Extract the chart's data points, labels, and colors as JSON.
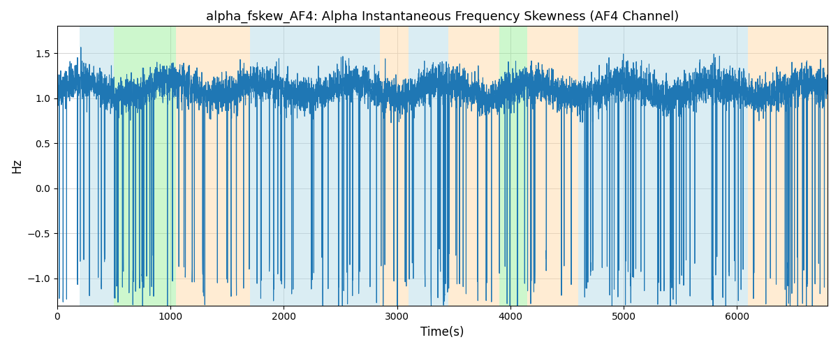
{
  "title": "alpha_fskew_AF4: Alpha Instantaneous Frequency Skewness (AF4 Channel)",
  "xlabel": "Time(s)",
  "ylabel": "Hz",
  "xlim": [
    0,
    6800
  ],
  "ylim": [
    -1.3,
    1.8
  ],
  "line_color": "#1f77b4",
  "line_width": 0.8,
  "bg_regions": [
    {
      "xmin": 200,
      "xmax": 500,
      "color": "#add8e6",
      "alpha": 0.45
    },
    {
      "xmin": 500,
      "xmax": 1050,
      "color": "#90ee90",
      "alpha": 0.45
    },
    {
      "xmin": 1050,
      "xmax": 1700,
      "color": "#ffd59e",
      "alpha": 0.45
    },
    {
      "xmin": 1700,
      "xmax": 2550,
      "color": "#add8e6",
      "alpha": 0.45
    },
    {
      "xmin": 2550,
      "xmax": 2850,
      "color": "#add8e6",
      "alpha": 0.45
    },
    {
      "xmin": 2850,
      "xmax": 3100,
      "color": "#ffd59e",
      "alpha": 0.45
    },
    {
      "xmin": 3100,
      "xmax": 3450,
      "color": "#add8e6",
      "alpha": 0.45
    },
    {
      "xmin": 3450,
      "xmax": 3900,
      "color": "#ffd59e",
      "alpha": 0.45
    },
    {
      "xmin": 3900,
      "xmax": 4150,
      "color": "#90ee90",
      "alpha": 0.45
    },
    {
      "xmin": 4150,
      "xmax": 4600,
      "color": "#ffd59e",
      "alpha": 0.45
    },
    {
      "xmin": 4600,
      "xmax": 6100,
      "color": "#add8e6",
      "alpha": 0.45
    },
    {
      "xmin": 6100,
      "xmax": 6800,
      "color": "#ffd59e",
      "alpha": 0.45
    }
  ],
  "seed": 42,
  "n_points": 6800,
  "title_fontsize": 13
}
